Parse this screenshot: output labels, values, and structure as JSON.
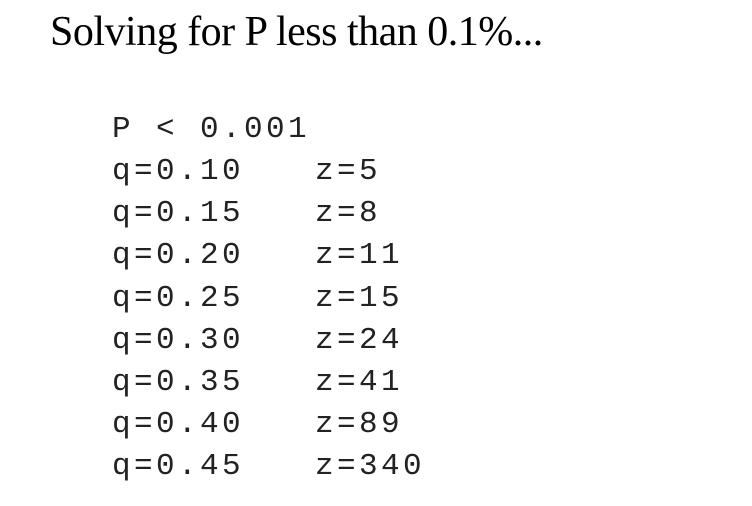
{
  "heading": "Solving for P less than 0.1%...",
  "code": {
    "condition": "P < 0.001",
    "rows": [
      [
        "q=0.10",
        "z=5"
      ],
      [
        "q=0.15",
        "z=8"
      ],
      [
        "q=0.20",
        "z=11"
      ],
      [
        "q=0.25",
        "z=15"
      ],
      [
        "q=0.30",
        "z=24"
      ],
      [
        "q=0.35",
        "z=41"
      ],
      [
        "q=0.40",
        "z=89"
      ],
      [
        "q=0.45",
        "z=340"
      ]
    ]
  }
}
